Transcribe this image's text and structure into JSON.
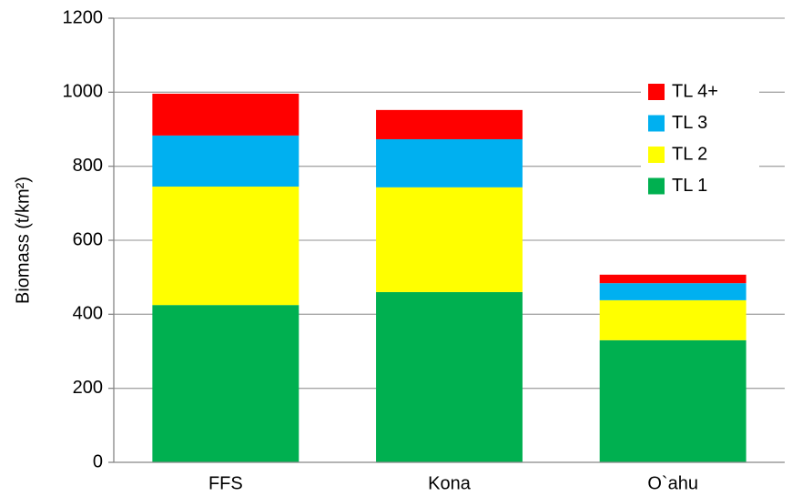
{
  "chart_data": {
    "type": "stacked_bar",
    "y_label": "Biomass (t/km²)",
    "categories": [
      "FFS",
      "Kona",
      "O`ahu"
    ],
    "series": [
      {
        "name": "TL 1",
        "color": "#00b050",
        "values": [
          425,
          460,
          330
        ]
      },
      {
        "name": "TL 2",
        "color": "#ffff00",
        "values": [
          320,
          283,
          108
        ]
      },
      {
        "name": "TL 3",
        "color": "#00b0f0",
        "values": [
          138,
          130,
          46
        ]
      },
      {
        "name": "TL 4+",
        "color": "#ff0000",
        "values": [
          113,
          79,
          23
        ]
      }
    ],
    "ylim": [
      0,
      1200
    ],
    "yticks": [
      0,
      200,
      400,
      600,
      800,
      1000,
      1200
    ],
    "grid": true,
    "legend": "upper right"
  }
}
